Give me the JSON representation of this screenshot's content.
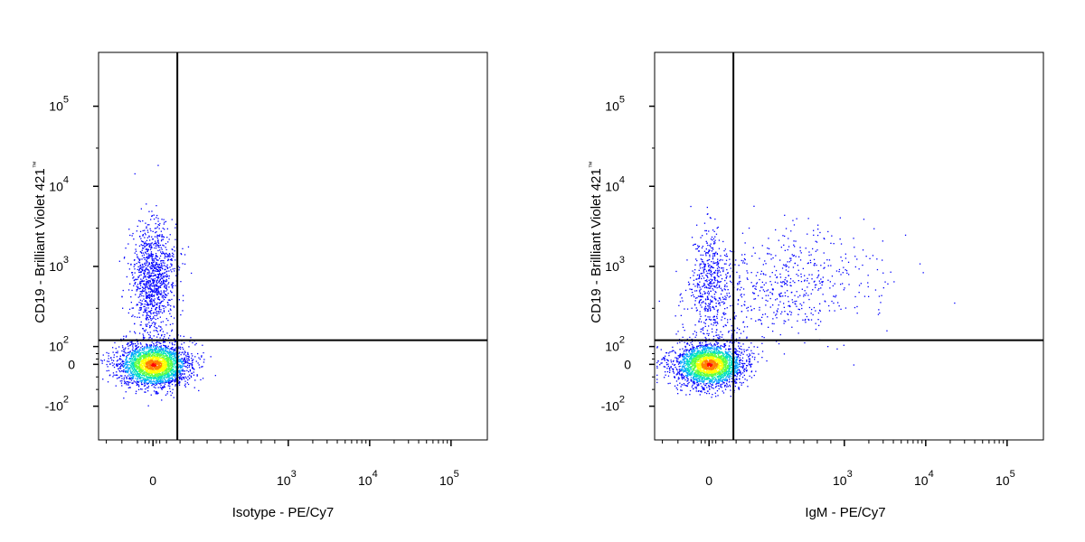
{
  "chart_data": [
    {
      "type": "scatter",
      "subtype": "flow-cytometry-density-dot-plot",
      "xlabel": "Isotype - PE/Cy7",
      "ylabel": "CD19 - Brilliant Violet 421",
      "ylabel_mark": "™",
      "x_scale": "biexponential",
      "y_scale": "biexponential",
      "x_ticks": [
        {
          "value": 0,
          "label": "0",
          "exp": ""
        },
        {
          "value": 1000,
          "label": "10",
          "exp": "3"
        },
        {
          "value": 10000,
          "label": "10",
          "exp": "4"
        },
        {
          "value": 100000,
          "label": "10",
          "exp": "5"
        }
      ],
      "y_ticks": [
        {
          "value": -100,
          "label": "-10",
          "exp": "2"
        },
        {
          "value": 0,
          "label": "0",
          "exp": ""
        },
        {
          "value": 100,
          "label": "10",
          "exp": "2"
        },
        {
          "value": 1000,
          "label": "10",
          "exp": "3"
        },
        {
          "value": 10000,
          "label": "10",
          "exp": "4"
        },
        {
          "value": 100000,
          "label": "10",
          "exp": "5"
        }
      ],
      "quadrant_gate": {
        "x": 180,
        "y": 120
      },
      "grid": false,
      "legend": "none",
      "populations": [
        {
          "name": "",
          "x_center": 0,
          "y_center": 0,
          "count": 2600,
          "spread": "dense"
        },
        {
          "name": "",
          "x_center": 0,
          "y_center": 700,
          "count": 1100,
          "spread": "medium"
        }
      ]
    },
    {
      "type": "scatter",
      "subtype": "flow-cytometry-density-dot-plot",
      "xlabel": "IgM - PE/Cy7",
      "ylabel": "CD19 - Brilliant Violet 421",
      "ylabel_mark": "™",
      "x_scale": "biexponential",
      "y_scale": "biexponential",
      "x_ticks": [
        {
          "value": 0,
          "label": "0",
          "exp": ""
        },
        {
          "value": 1000,
          "label": "10",
          "exp": "3"
        },
        {
          "value": 10000,
          "label": "10",
          "exp": "4"
        },
        {
          "value": 100000,
          "label": "10",
          "exp": "5"
        }
      ],
      "y_ticks": [
        {
          "value": -100,
          "label": "-10",
          "exp": "2"
        },
        {
          "value": 0,
          "label": "0",
          "exp": ""
        },
        {
          "value": 100,
          "label": "10",
          "exp": "2"
        },
        {
          "value": 1000,
          "label": "10",
          "exp": "3"
        },
        {
          "value": 10000,
          "label": "10",
          "exp": "4"
        },
        {
          "value": 100000,
          "label": "10",
          "exp": "5"
        }
      ],
      "quadrant_gate": {
        "x": 180,
        "y": 120
      },
      "grid": false,
      "legend": "none",
      "populations": [
        {
          "name": "",
          "x_center": 0,
          "y_center": 0,
          "count": 2600,
          "spread": "dense"
        },
        {
          "name": "",
          "x_center": 0,
          "y_center": 600,
          "count": 500,
          "spread": "medium"
        },
        {
          "name": "",
          "x_center": 700,
          "y_center": 700,
          "count": 600,
          "spread": "wide"
        }
      ]
    }
  ],
  "colors": {
    "density_scale": [
      "#0000ff",
      "#00a0ff",
      "#00e0c0",
      "#60ff40",
      "#ffff00",
      "#ff8000",
      "#ff0000"
    ],
    "axis": "#000000",
    "gate": "#000000"
  }
}
